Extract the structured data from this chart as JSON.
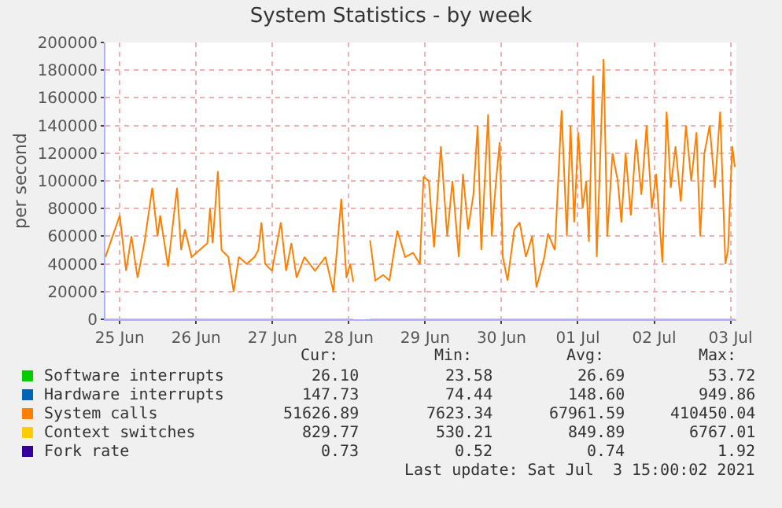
{
  "chart_data": {
    "type": "line",
    "title": "System Statistics - by week",
    "ylabel": "per second",
    "xlim": [
      "2021-06-25T07:30",
      "2021-07-03T13:50"
    ],
    "xticks": [
      {
        "value": "2021-06-25T12:00",
        "label": "25 Jun"
      },
      {
        "value": "2021-06-26T12:00",
        "label": "26 Jun"
      },
      {
        "value": "2021-06-27T12:00",
        "label": "27 Jun"
      },
      {
        "value": "2021-06-28T12:00",
        "label": "28 Jun"
      },
      {
        "value": "2021-06-29T12:00",
        "label": "29 Jun"
      },
      {
        "value": "2021-06-30T12:00",
        "label": "30 Jun"
      },
      {
        "value": "2021-07-01T12:00",
        "label": "01 Jul"
      },
      {
        "value": "2021-07-02T12:00",
        "label": "02 Jul"
      },
      {
        "value": "2021-07-03T12:00",
        "label": "03 Jul"
      }
    ],
    "ylim": [
      0,
      200000
    ],
    "yticks": [
      0,
      20000,
      40000,
      60000,
      80000,
      100000,
      120000,
      140000,
      160000,
      180000,
      200000
    ],
    "grid": true,
    "legend": "bottom",
    "marker": "none",
    "line_style": "solid",
    "series": [
      {
        "name": "Software interrupts",
        "color": "#00cc00"
      },
      {
        "name": "Hardware interrupts",
        "color": "#0066b3"
      },
      {
        "name": "System calls",
        "color": "#ff8000",
        "x": [
          "2021-06-25T07:30",
          "2021-06-25T12:00",
          "2021-06-25T14:00",
          "2021-06-25T15:40",
          "2021-06-25T17:36",
          "2021-06-25T19:45",
          "2021-06-25T22:14",
          "2021-06-25T23:53",
          "2021-06-26T00:43",
          "2021-06-26T03:11",
          "2021-06-26T06:00",
          "2021-06-26T07:18",
          "2021-06-26T08:28",
          "2021-06-26T10:36",
          "2021-06-26T13:05",
          "2021-06-26T15:33",
          "2021-06-26T16:23",
          "2021-06-26T17:12",
          "2021-06-26T18:51",
          "2021-06-26T20:00",
          "2021-06-26T22:09",
          "2021-06-26T23:48",
          "2021-06-27T01:27",
          "2021-06-27T03:55",
          "2021-06-27T06:24",
          "2021-06-27T07:34",
          "2021-06-27T08:33",
          "2021-06-27T09:42",
          "2021-06-27T11:51",
          "2021-06-27T14:39",
          "2021-06-27T16:18",
          "2021-06-27T17:57",
          "2021-06-27T19:36",
          "2021-06-27T22:04",
          "2021-06-28T01:22",
          "2021-06-28T04:40",
          "2021-06-28T07:09",
          "2021-06-28T09:38",
          "2021-06-28T11:17",
          "2021-06-28T12:26",
          "2021-06-28T13:25",
          "2021-06-28T15:00",
          "2021-06-28T18:41",
          "2021-06-28T20:20",
          "2021-06-28T22:48",
          "2021-06-29T00:47",
          "2021-06-29T03:15",
          "2021-06-29T05:43",
          "2021-06-29T08:12",
          "2021-06-29T10:21",
          "2021-06-29T11:30",
          "2021-06-29T13:09",
          "2021-06-29T14:48",
          "2021-06-29T16:57",
          "2021-06-29T18:56",
          "2021-06-29T20:35",
          "2021-06-29T22:34",
          "2021-06-29T23:53",
          "2021-06-30T01:31",
          "2021-06-30T03:10",
          "2021-06-30T04:30",
          "2021-06-30T05:39",
          "2021-06-30T07:48",
          "2021-06-30T08:57",
          "2021-06-30T10:06",
          "2021-06-30T11:26",
          "2021-06-30T12:25",
          "2021-06-30T13:54",
          "2021-06-30T16:03",
          "2021-06-30T17:42",
          "2021-06-30T19:41",
          "2021-06-30T21:40",
          "2021-06-30T23:00",
          "2021-07-01T01:28",
          "2021-07-01T02:37",
          "2021-07-01T04:46",
          "2021-07-01T06:54",
          "2021-07-01T08:33",
          "2021-07-01T09:42",
          "2021-07-01T10:51",
          "2021-07-01T12:10",
          "2021-07-01T13:30",
          "2021-07-01T14:39",
          "2021-07-01T15:28",
          "2021-07-01T16:48",
          "2021-07-01T17:57",
          "2021-07-01T20:06",
          "2021-07-01T21:15",
          "2021-07-01T22:54",
          "2021-07-02T00:33",
          "2021-07-02T01:42",
          "2021-07-02T03:01",
          "2021-07-02T04:40",
          "2021-07-02T06:19",
          "2021-07-02T07:58",
          "2021-07-02T09:37",
          "2021-07-02T11:16",
          "2021-07-02T12:36",
          "2021-07-02T14:35",
          "2021-07-02T15:54",
          "2021-07-02T17:13",
          "2021-07-02T18:42",
          "2021-07-02T20:21",
          "2021-07-02T22:00",
          "2021-07-02T23:39",
          "2021-07-03T01:18",
          "2021-07-03T02:28",
          "2021-07-03T03:47",
          "2021-07-03T05:26",
          "2021-07-03T07:05",
          "2021-07-03T08:44",
          "2021-07-03T10:23",
          "2021-07-03T11:13",
          "2021-07-03T12:32",
          "2021-07-03T13:22"
        ],
        "values": [
          45000,
          75000,
          35000,
          60000,
          30000,
          55000,
          95000,
          60000,
          75000,
          38000,
          95000,
          50000,
          65000,
          45000,
          50000,
          55000,
          80000,
          55000,
          107000,
          50000,
          45000,
          20000,
          45000,
          40000,
          45000,
          50000,
          70000,
          40000,
          35000,
          70000,
          35000,
          55000,
          30000,
          45000,
          35000,
          45000,
          20000,
          87000,
          30000,
          40000,
          27000,
          null,
          57000,
          28000,
          32000,
          28000,
          64000,
          45000,
          48000,
          40000,
          103000,
          100000,
          52000,
          125000,
          60000,
          100000,
          45000,
          105000,
          65000,
          90000,
          140000,
          50000,
          148000,
          60000,
          95000,
          128000,
          45000,
          28000,
          65000,
          70000,
          45000,
          60000,
          23000,
          45000,
          62000,
          50000,
          151000,
          60000,
          140000,
          70000,
          135000,
          80000,
          100000,
          56000,
          176000,
          45000,
          188000,
          60000,
          120000,
          100000,
          70000,
          120000,
          75000,
          130000,
          90000,
          140000,
          80000,
          105000,
          41000,
          150000,
          95000,
          125000,
          85000,
          140000,
          100000,
          135000,
          60000,
          120000,
          140000,
          95000,
          150000,
          40000,
          50000,
          125000,
          110000
        ]
      },
      {
        "name": "Context switches",
        "color": "#ffcc00",
        "x": [
          "2021-06-25T07:30",
          "2021-06-28T13:25",
          "2021-06-28T15:00",
          "2021-06-28T18:40",
          "2021-07-03T13:20"
        ],
        "values": [
          0,
          0,
          null,
          0,
          0
        ]
      },
      {
        "name": "Fork rate",
        "color": "#330099"
      }
    ],
    "annotations": [
      "Cur:",
      "Min:",
      "Avg:",
      "Max:",
      "26.10",
      "23.58",
      "26.69",
      "53.72",
      "147.73",
      "74.44",
      "148.60",
      "949.86",
      "51626.89",
      "7623.34",
      "67961.59",
      "410450.04",
      "829.77",
      "530.21",
      "849.89",
      "6767.01",
      "0.73",
      "0.52",
      "0.74",
      "1.92",
      "Last update: Sat Jul  3 15:00:02 2021"
    ]
  }
}
